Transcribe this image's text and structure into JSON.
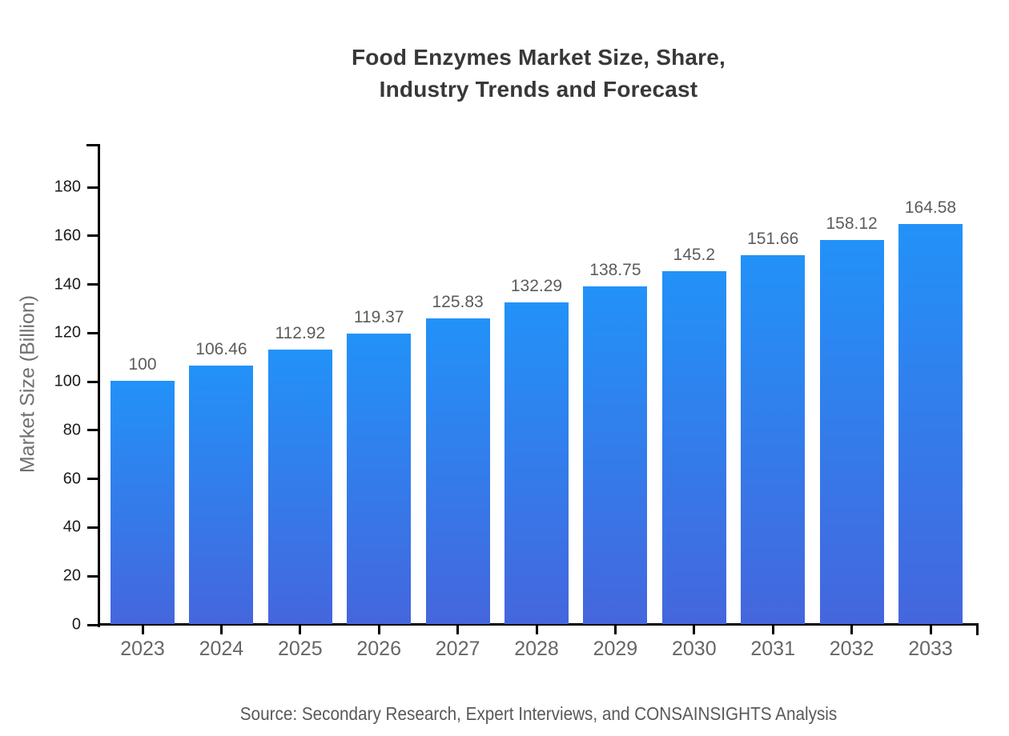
{
  "page": {
    "background": "#ffffff"
  },
  "chart": {
    "title": "Food Enzymes Market Size, Share,\nIndustry Trends and Forecast",
    "y_axis_label": "Market Size (Billion)",
    "source": "Source: Secondary Research, Expert Interviews, and CONSAINSIGHTS Analysis"
  },
  "chart_data": {
    "type": "bar",
    "title": "Food Enzymes Market Size, Share, Industry Trends and Forecast",
    "categories": [
      "2023",
      "2024",
      "2025",
      "2026",
      "2027",
      "2028",
      "2029",
      "2030",
      "2031",
      "2032",
      "2033"
    ],
    "values": [
      100,
      106.46,
      112.92,
      119.37,
      125.83,
      132.29,
      138.75,
      145.2,
      151.66,
      158.12,
      164.58
    ],
    "value_labels": [
      "100",
      "106.46",
      "112.92",
      "119.37",
      "125.83",
      "132.29",
      "138.75",
      "145.2",
      "151.66",
      "158.12",
      "164.58"
    ],
    "xlabel": "",
    "ylabel": "Market Size (Billion)",
    "ylim": [
      0,
      197.8
    ],
    "yticks": [
      0,
      20,
      40,
      60,
      80,
      100,
      120,
      140,
      160,
      180
    ],
    "grid": false,
    "legend": "none",
    "colors": {
      "bar_gradient_top": "#2292F8",
      "bar_gradient_bottom": "#4566DD",
      "axis": "#000000",
      "title_text": "#383838",
      "y_tick_text": "#1c1c1c",
      "x_tick_text": "#666666",
      "value_label_text": "#5c5c5c",
      "y_axis_label_text": "#707070",
      "source_text": "#595959"
    }
  }
}
